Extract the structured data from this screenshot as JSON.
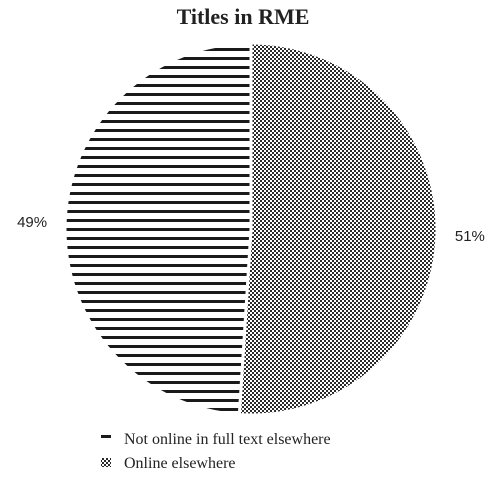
{
  "chart_data": {
    "type": "pie",
    "title": "Titles in RME",
    "categories": [
      "Not online in full text elsewhere",
      "Online elsewhere"
    ],
    "values": [
      49,
      51
    ],
    "data_labels": [
      "49%",
      "51%"
    ],
    "patterns": [
      "horizontal-lines",
      "checker-dots"
    ],
    "legend_position": "bottom",
    "start_angle": "12 o'clock, clockwise"
  },
  "colors": {
    "ink": "#222222",
    "background": "#ffffff"
  }
}
